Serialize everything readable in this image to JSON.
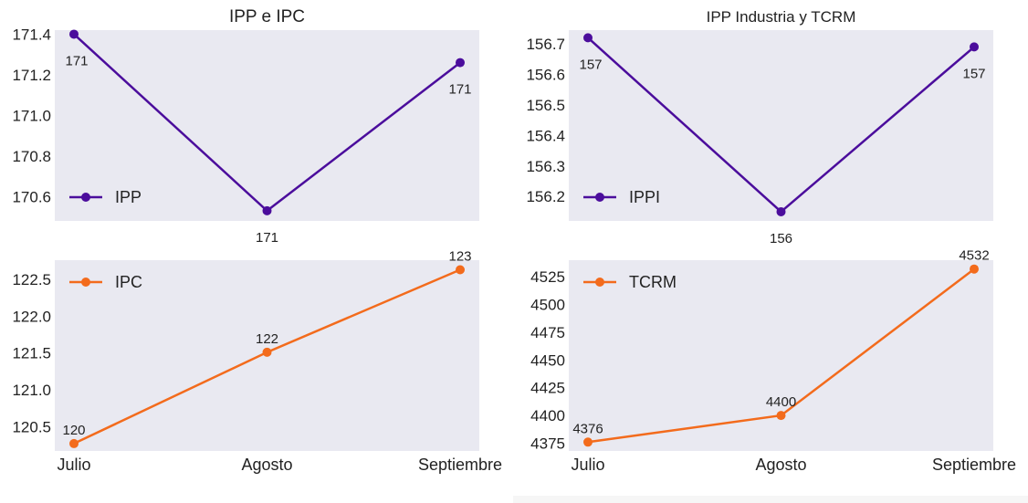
{
  "colors": {
    "plot_bg": "#e9e9f1",
    "ipp_series": "#4b0d9c",
    "ipc_series": "#f36b1c"
  },
  "chart_data": [
    {
      "id": "ipp",
      "type": "line",
      "title": "IPP e IPC",
      "x": [
        "Julio",
        "Agosto",
        "Septiembre"
      ],
      "series": [
        {
          "name": "IPP",
          "values": [
            171.4,
            170.53,
            171.26
          ],
          "labels": [
            "171",
            "171",
            "171"
          ],
          "color": "#4b0d9c"
        }
      ],
      "ylim": [
        170.48,
        171.42
      ],
      "yticks": [
        "170.6",
        "170.8",
        "171.0",
        "171.2",
        "171.4"
      ],
      "show_xticks": false,
      "legend": "lower-left",
      "grid": false
    },
    {
      "id": "ippi",
      "type": "line",
      "title": "IPP Industria y TCRM",
      "x": [
        "Julio",
        "Agosto",
        "Septiembre"
      ],
      "series": [
        {
          "name": "IPPI",
          "values": [
            156.72,
            156.15,
            156.69
          ],
          "labels": [
            "157",
            "156",
            "157"
          ],
          "color": "#4b0d9c"
        }
      ],
      "ylim": [
        156.12,
        156.745
      ],
      "yticks": [
        "156.2",
        "156.3",
        "156.4",
        "156.5",
        "156.6",
        "156.7"
      ],
      "show_xticks": false,
      "legend": "lower-left",
      "grid": false
    },
    {
      "id": "ipc",
      "type": "line",
      "title": "",
      "x": [
        "Julio",
        "Agosto",
        "Septiembre"
      ],
      "series": [
        {
          "name": "IPC",
          "values": [
            120.27,
            121.51,
            122.63
          ],
          "labels": [
            "120",
            "122",
            "123"
          ],
          "color": "#f36b1c"
        }
      ],
      "ylim": [
        120.17,
        122.76
      ],
      "yticks": [
        "120.5",
        "121.0",
        "121.5",
        "122.0",
        "122.5"
      ],
      "show_xticks": true,
      "legend": "upper-left",
      "grid": false
    },
    {
      "id": "tcrm",
      "type": "line",
      "title": "",
      "x": [
        "Julio",
        "Agosto",
        "Septiembre"
      ],
      "series": [
        {
          "name": "TCRM",
          "values": [
            4376,
            4400,
            4532
          ],
          "labels": [
            "4376",
            "4400",
            "4532"
          ],
          "color": "#f36b1c"
        }
      ],
      "ylim": [
        4368,
        4540
      ],
      "yticks": [
        "4375",
        "4400",
        "4425",
        "4450",
        "4475",
        "4500",
        "4525"
      ],
      "show_xticks": true,
      "legend": "upper-left",
      "grid": false
    }
  ]
}
